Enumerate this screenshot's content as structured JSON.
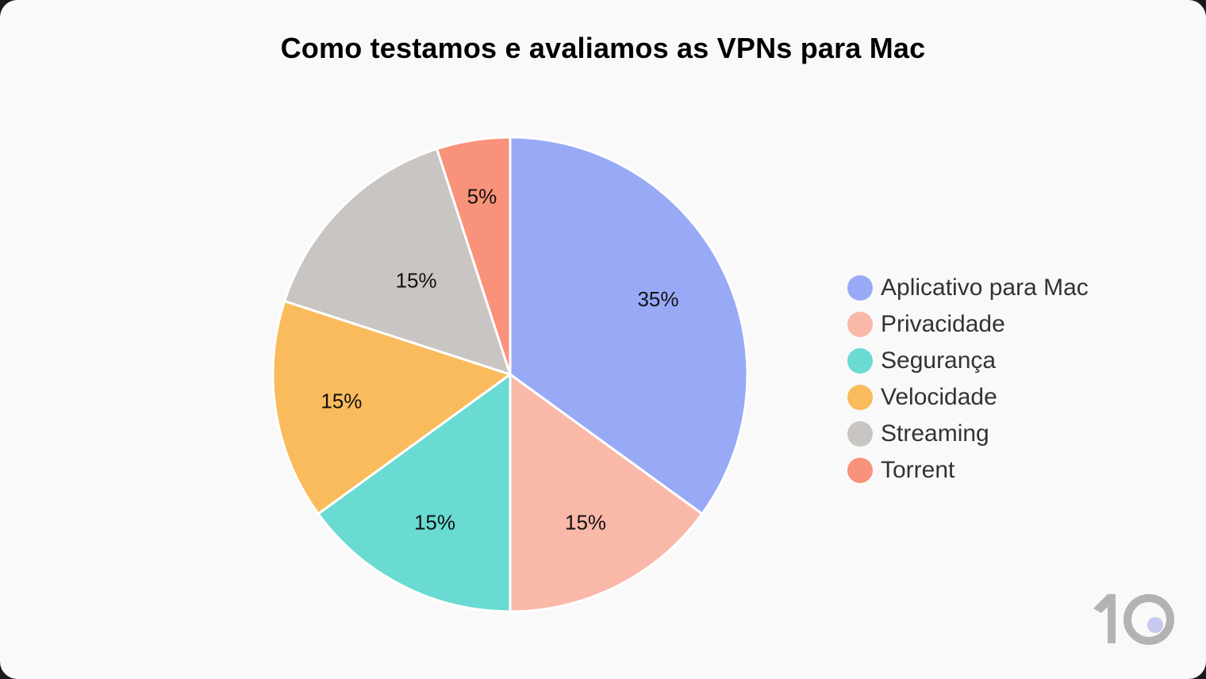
{
  "title": "Como testamos e avaliamos as VPNs para Mac",
  "chart_data": {
    "type": "pie",
    "title": "Como testamos e avaliamos as VPNs para Mac",
    "categories": [
      "Aplicativo para Mac",
      "Privacidade",
      "Segurança",
      "Velocidade",
      "Streaming",
      "Torrent"
    ],
    "values": [
      35,
      15,
      15,
      15,
      15,
      5
    ],
    "labels": [
      "35%",
      "15%",
      "15%",
      "15%",
      "15%",
      "5%"
    ],
    "colors": [
      "#98aaf6",
      "#fab8a8",
      "#69dbd2",
      "#fabb5c",
      "#c8c5c3",
      "#f9927a"
    ],
    "start_angle": "12 o'clock, clockwise",
    "legend_position": "right"
  },
  "legend": [
    {
      "label": "Aplicativo para Mac",
      "color": "#98aaf6"
    },
    {
      "label": "Privacidade",
      "color": "#fab8a8"
    },
    {
      "label": "Segurança",
      "color": "#69dbd2"
    },
    {
      "label": "Velocidade",
      "color": "#fabb5c"
    },
    {
      "label": "Streaming",
      "color": "#c8c5c3"
    },
    {
      "label": "Torrent",
      "color": "#f9927a"
    }
  ],
  "logo": {
    "text": "10",
    "digit_color": "#b3b3b3",
    "dot_color": "#c7c9f0"
  }
}
